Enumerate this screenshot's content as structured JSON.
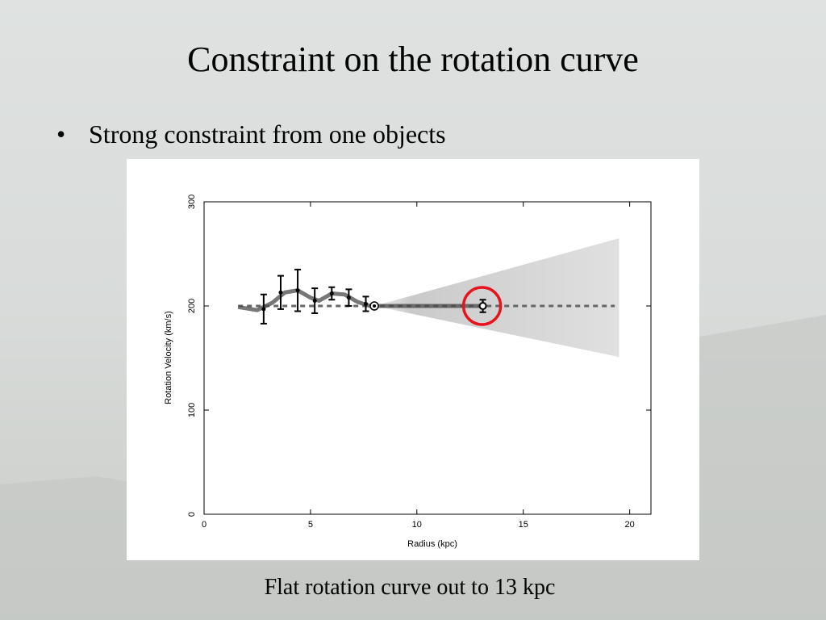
{
  "title": "Constraint on the rotation curve",
  "bullets": [
    "Strong constraint from one objects"
  ],
  "caption": "Flat rotation curve out to 13 kpc",
  "chart_data": {
    "type": "scatter",
    "xlabel": "Radius (kpc)",
    "ylabel": "Rotation Velocity (km/s)",
    "xlim": [
      0,
      21
    ],
    "ylim": [
      0,
      300
    ],
    "xticks": [
      0,
      5,
      10,
      15,
      20
    ],
    "yticks": [
      0,
      100,
      200,
      300
    ],
    "grid": false,
    "series": [
      {
        "color": "#000000",
        "marker": "dot",
        "x": [
          2.8,
          3.6,
          4.4,
          5.2,
          6.0,
          6.8,
          7.6
        ],
        "values": [
          197,
          213,
          215,
          205,
          212,
          208,
          202
        ],
        "errors": [
          14,
          16,
          20,
          12,
          6,
          8,
          7
        ]
      },
      {
        "color": "#000000",
        "marker": "sun",
        "x": [
          8.0
        ],
        "values": [
          200
        ]
      },
      {
        "color": "#000000",
        "marker": "open",
        "x": [
          13.1
        ],
        "values": [
          200
        ],
        "errors": [
          6
        ],
        "highlight_color": "#e8141c"
      }
    ],
    "curve": {
      "color": "#4a4a4a",
      "x": [
        1.6,
        2.5,
        3.2,
        3.8,
        4.4,
        5.0,
        5.4,
        6.0,
        6.6,
        7.2,
        7.8,
        8.5,
        13.0
      ],
      "values": [
        199,
        196,
        203,
        213,
        215,
        208,
        205,
        212,
        211,
        204,
        200,
        200,
        200
      ]
    },
    "reference_line": {
      "color": "#666666",
      "x": [
        1.6,
        19.3
      ],
      "values": [
        200,
        200
      ]
    },
    "band": {
      "color": "#9a9a9a",
      "x": [
        8.0,
        19.5
      ],
      "lower": [
        200,
        151
      ],
      "upper": [
        200,
        265
      ]
    }
  }
}
